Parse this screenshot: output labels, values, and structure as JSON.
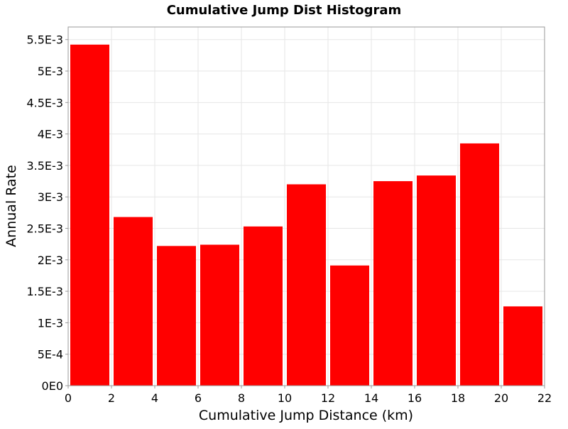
{
  "chart_data": {
    "type": "bar",
    "title": "Cumulative Jump Dist Histogram",
    "xlabel": "Cumulative Jump Distance (km)",
    "ylabel": "Annual Rate",
    "xlim": [
      0,
      22
    ],
    "ylim": [
      0,
      0.0057
    ],
    "grid": true,
    "legend": "none",
    "bar_color": "#ff0000",
    "x_ticks": [
      0,
      2,
      4,
      6,
      8,
      10,
      12,
      14,
      16,
      18,
      20,
      22
    ],
    "y_ticks": [
      0,
      0.0005,
      0.001,
      0.0015,
      0.002,
      0.0025,
      0.003,
      0.0035,
      0.004,
      0.0045,
      0.005,
      0.0055
    ],
    "y_tick_labels": [
      "0E0",
      "5E-4",
      "1E-3",
      "1.5E-3",
      "2E-3",
      "2.5E-3",
      "3E-3",
      "3.5E-3",
      "4E-3",
      "4.5E-3",
      "5E-3",
      "5.5E-3"
    ],
    "bins": [
      {
        "x0": 0,
        "x1": 2,
        "value": 0.00542
      },
      {
        "x0": 2,
        "x1": 4,
        "value": 0.00268
      },
      {
        "x0": 4,
        "x1": 6,
        "value": 0.00222
      },
      {
        "x0": 6,
        "x1": 8,
        "value": 0.00224
      },
      {
        "x0": 8,
        "x1": 10,
        "value": 0.00253
      },
      {
        "x0": 10,
        "x1": 12,
        "value": 0.0032
      },
      {
        "x0": 12,
        "x1": 14,
        "value": 0.00191
      },
      {
        "x0": 14,
        "x1": 16,
        "value": 0.00325
      },
      {
        "x0": 16,
        "x1": 18,
        "value": 0.00334
      },
      {
        "x0": 18,
        "x1": 20,
        "value": 0.00385
      },
      {
        "x0": 20,
        "x1": 22,
        "value": 0.00126
      }
    ]
  }
}
